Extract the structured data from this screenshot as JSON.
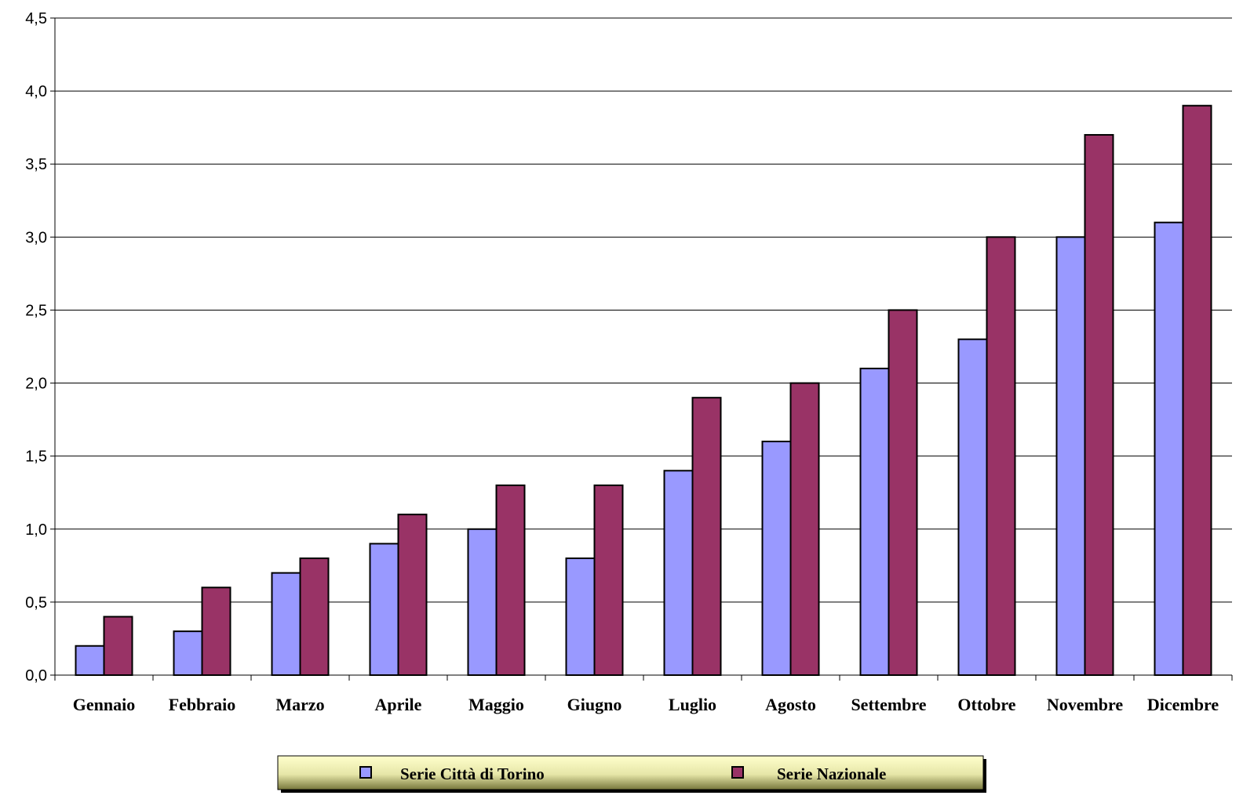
{
  "chart_data": {
    "type": "bar",
    "categories": [
      "Gennaio",
      "Febbraio",
      "Marzo",
      "Aprile",
      "Maggio",
      "Giugno",
      "Luglio",
      "Agosto",
      "Settembre",
      "Ottobre",
      "Novembre",
      "Dicembre"
    ],
    "series": [
      {
        "name": "Serie Città di Torino",
        "color": "#9999ff",
        "values": [
          0.2,
          0.3,
          0.7,
          0.9,
          1.0,
          0.8,
          1.4,
          1.6,
          2.1,
          2.3,
          3.0,
          3.1
        ]
      },
      {
        "name": "Serie Nazionale",
        "color": "#993366",
        "values": [
          0.4,
          0.6,
          0.8,
          1.1,
          1.3,
          1.3,
          1.9,
          2.0,
          2.5,
          3.0,
          3.7,
          3.9
        ]
      }
    ],
    "y_ticks": [
      "0,0",
      "0,5",
      "1,0",
      "1,5",
      "2,0",
      "2,5",
      "3,0",
      "3,5",
      "4,0",
      "4,5"
    ],
    "ylim": [
      0,
      4.5
    ],
    "grid": true,
    "legend": {
      "position": "bottom",
      "background": "#ffffcc"
    },
    "title": "",
    "xlabel": "",
    "ylabel": ""
  }
}
